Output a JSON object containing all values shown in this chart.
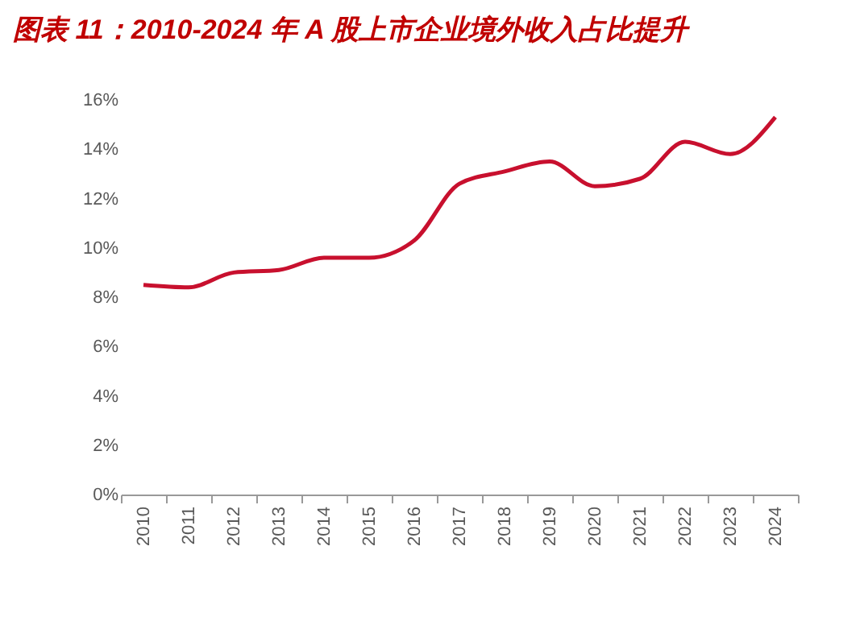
{
  "chart_data": {
    "type": "line",
    "title": "图表 11：2010-2024 年 A 股上市企业境外收入占比提升",
    "categories": [
      "2010",
      "2011",
      "2012",
      "2013",
      "2014",
      "2015",
      "2016",
      "2017",
      "2018",
      "2019",
      "2020",
      "2021",
      "2022",
      "2023",
      "2024"
    ],
    "series": [
      {
        "color": "#c8102e",
        "values": [
          8.5,
          8.4,
          9.0,
          9.1,
          9.6,
          9.6,
          10.3,
          12.6,
          13.1,
          13.5,
          12.5,
          12.8,
          14.3,
          13.8,
          15.3
        ]
      }
    ],
    "ylim": [
      0,
      16
    ],
    "yticks": [
      {
        "value": 0,
        "label": "0%"
      },
      {
        "value": 2,
        "label": "2%"
      },
      {
        "value": 4,
        "label": "4%"
      },
      {
        "value": 6,
        "label": "6%"
      },
      {
        "value": 8,
        "label": "8%"
      },
      {
        "value": 10,
        "label": "10%"
      },
      {
        "value": 12,
        "label": "12%"
      },
      {
        "value": 14,
        "label": "14%"
      },
      {
        "value": 16,
        "label": "16%"
      }
    ],
    "grid": false,
    "marker": "none",
    "line_style": "solid"
  }
}
